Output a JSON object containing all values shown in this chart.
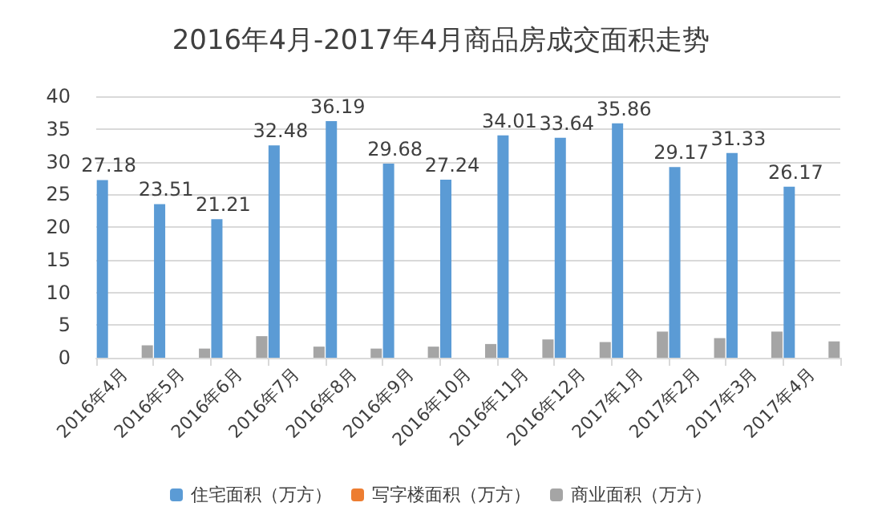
{
  "chart_data": {
    "type": "bar",
    "title": "2016年4月-2017年4月商品房成交面积走势",
    "categories": [
      "2016年4月",
      "2016年5月",
      "2016年6月",
      "2016年7月",
      "2016年8月",
      "2016年9月",
      "2016年10月",
      "2016年11月",
      "2016年12月",
      "2017年1月",
      "2017年2月",
      "2017年3月",
      "2017年4月"
    ],
    "series": [
      {
        "name": "住宅面积（万方）",
        "color": "#5b9bd5",
        "values": [
          27.18,
          23.51,
          21.21,
          32.48,
          36.19,
          29.68,
          27.24,
          34.01,
          33.64,
          35.86,
          29.17,
          31.33,
          26.17
        ],
        "value_labels": [
          "27.18",
          "23.51",
          "21.21",
          "32.48",
          "36.19",
          "29.68",
          "27.24",
          "34.01",
          "33.64",
          "35.86",
          "29.17",
          "31.33",
          "26.17"
        ]
      },
      {
        "name": "写字楼面积（万方）",
        "color": "#ed7d31",
        "values": [
          null,
          null,
          null,
          null,
          null,
          null,
          null,
          null,
          null,
          null,
          null,
          null,
          null
        ]
      },
      {
        "name": "商业面积（万方）",
        "color": "#a5a5a5",
        "values": [
          1.9,
          1.4,
          3.3,
          1.7,
          1.4,
          1.7,
          2.1,
          2.8,
          2.4,
          4.0,
          3.0,
          4.0,
          2.5
        ]
      }
    ],
    "ylim": [
      0,
      40
    ],
    "yticks": [
      0,
      5,
      10,
      15,
      20,
      25,
      30,
      35,
      40
    ],
    "grid": "y",
    "legend": "bottom"
  }
}
